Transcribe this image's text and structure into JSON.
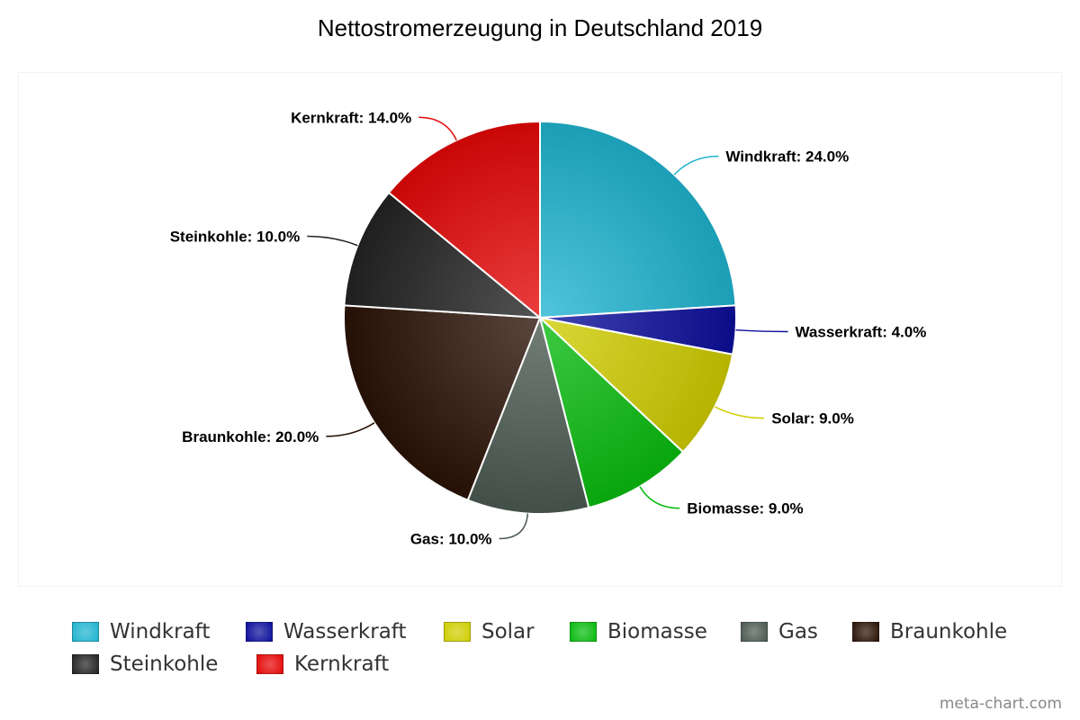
{
  "chart_data": {
    "type": "pie",
    "title": "Nettostromerzeugung in Deutschland 2019",
    "slices": [
      {
        "name": "Windkraft",
        "value": 24.0,
        "label": "Windkraft: 24.0%",
        "color": "#1fb3cf"
      },
      {
        "name": "Wasserkraft",
        "value": 4.0,
        "label": "Wasserkraft: 4.0%",
        "color": "#0c0f9b"
      },
      {
        "name": "Solar",
        "value": 9.0,
        "label": "Solar: 9.0%",
        "color": "#cfcd00"
      },
      {
        "name": "Biomasse",
        "value": 9.0,
        "label": "Biomasse: 9.0%",
        "color": "#09bb0f"
      },
      {
        "name": "Gas",
        "value": 10.0,
        "label": "Gas: 10.0%",
        "color": "#4b5a52"
      },
      {
        "name": "Braunkohle",
        "value": 20.0,
        "label": "Braunkohle: 20.0%",
        "color": "#2a1206"
      },
      {
        "name": "Steinkohle",
        "value": 10.0,
        "label": "Steinkohle: 10.0%",
        "color": "#232323"
      },
      {
        "name": "Kernkraft",
        "value": 14.0,
        "label": "Kernkraft: 14.0%",
        "color": "#e40707"
      }
    ],
    "legend_position": "bottom",
    "credit": "meta-chart.com"
  }
}
